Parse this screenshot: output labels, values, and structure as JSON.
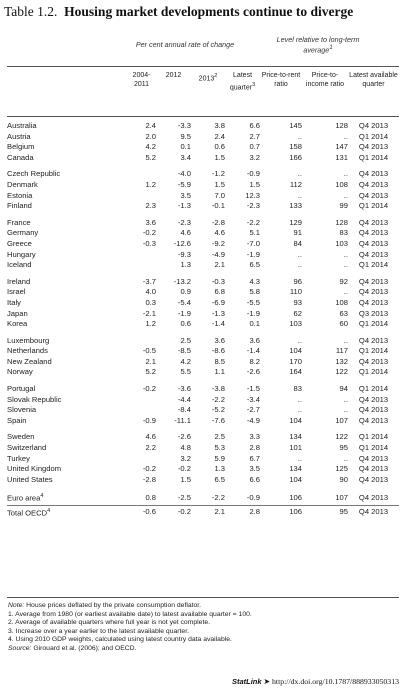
{
  "title": {
    "prefix": "Table 1.2.",
    "text": "Housing market developments continue to diverge"
  },
  "headers": {
    "group1": "Per cent annual rate of change",
    "group2": "Level relative to long-term average",
    "group2_sup": "1",
    "columns": [
      {
        "text": "2004-2011",
        "sup": ""
      },
      {
        "text": "2012",
        "sup": ""
      },
      {
        "text": "2013",
        "sup": "2"
      },
      {
        "text": "Latest quarter",
        "sup": "3"
      },
      {
        "text": "Price-to-rent ratio",
        "sup": ""
      },
      {
        "text": "Price-to-income ratio",
        "sup": ""
      },
      {
        "text": "Latest available quarter",
        "sup": ""
      }
    ]
  },
  "rows": [
    {
      "country": "Australia",
      "v": [
        "2.4",
        "-3.3",
        "3.8",
        "6.6",
        "145",
        "128",
        "Q4 2013"
      ]
    },
    {
      "country": "Austria",
      "v": [
        "2.0",
        "9.5",
        "2.4",
        "2.7",
        "..",
        "..",
        "Q1 2014"
      ]
    },
    {
      "country": "Belgium",
      "v": [
        "4.2",
        "0.1",
        "0.6",
        "0.7",
        "158",
        "147",
        "Q4 2013"
      ]
    },
    {
      "country": "Canada",
      "v": [
        "5.2",
        "3.4",
        "1.5",
        "3.2",
        "166",
        "131",
        "Q1 2014"
      ]
    },
    {
      "country": "Czech Republic",
      "v": [
        "",
        "-4.0",
        "-1.2",
        "-0.9",
        "..",
        "..",
        "Q4 2013"
      ]
    },
    {
      "country": "Denmark",
      "v": [
        "1.2",
        "-5.9",
        "1.5",
        "1.5",
        "112",
        "108",
        "Q4 2013"
      ]
    },
    {
      "country": "Estonia",
      "v": [
        "",
        "3.5",
        "7.0",
        "12.3",
        "..",
        "..",
        "Q4 2013"
      ]
    },
    {
      "country": "Finland",
      "v": [
        "2.3",
        "-1.3",
        "-0.1",
        "-2.3",
        "133",
        "99",
        "Q1 2014"
      ]
    },
    {
      "country": "France",
      "v": [
        "3.6",
        "-2.3",
        "-2.8",
        "-2.2",
        "129",
        "128",
        "Q4 2013"
      ]
    },
    {
      "country": "Germany",
      "v": [
        "-0.2",
        "4.6",
        "4.6",
        "5.1",
        "91",
        "83",
        "Q4 2013"
      ]
    },
    {
      "country": "Greece",
      "v": [
        "-0.3",
        "-12.6",
        "-9.2",
        "-7.0",
        "84",
        "103",
        "Q4 2013"
      ]
    },
    {
      "country": "Hungary",
      "v": [
        "",
        "-9.3",
        "-4.9",
        "-1.9",
        "..",
        "..",
        "Q4 2013"
      ]
    },
    {
      "country": "Iceland",
      "v": [
        "",
        "1.3",
        "2.1",
        "6.5",
        "..",
        "..",
        "Q1 2014"
      ]
    },
    {
      "country": "Ireland",
      "v": [
        "-3.7",
        "-13.2",
        "-0.3",
        "4.3",
        "96",
        "92",
        "Q4 2013"
      ]
    },
    {
      "country": "Israel",
      "v": [
        "4.0",
        "0.9",
        "6.8",
        "5.8",
        "110",
        "..",
        "Q4 2013"
      ]
    },
    {
      "country": "Italy",
      "v": [
        "0.3",
        "-5.4",
        "-6.9",
        "-5.5",
        "93",
        "108",
        "Q4 2013"
      ]
    },
    {
      "country": "Japan",
      "v": [
        "-2.1",
        "-1.9",
        "-1.3",
        "-1.9",
        "62",
        "63",
        "Q3 2013"
      ]
    },
    {
      "country": "Korea",
      "v": [
        "1.2",
        "0.6",
        "-1.4",
        "0.1",
        "103",
        "60",
        "Q1 2014"
      ]
    },
    {
      "country": "Luxembourg",
      "v": [
        "",
        "2.5",
        "3.6",
        "3.6",
        "..",
        "..",
        "Q4 2013"
      ]
    },
    {
      "country": "Netherlands",
      "v": [
        "-0.5",
        "-8.5",
        "-8.6",
        "-1.4",
        "104",
        "117",
        "Q1 2014"
      ]
    },
    {
      "country": "New Zealand",
      "v": [
        "2.1",
        "4.2",
        "8.5",
        "8.2",
        "170",
        "132",
        "Q4 2013"
      ]
    },
    {
      "country": "Norway",
      "v": [
        "5.2",
        "5.5",
        "1.1",
        "-2.6",
        "164",
        "122",
        "Q1 2014"
      ]
    },
    {
      "country": "Portugal",
      "v": [
        "-0.2",
        "-3.6",
        "-3.8",
        "-1.5",
        "83",
        "94",
        "Q1 2014"
      ]
    },
    {
      "country": "Slovak Republic",
      "v": [
        "",
        "-4.4",
        "-2.2",
        "-3.4",
        "..",
        "..",
        "Q4 2013"
      ]
    },
    {
      "country": "Slovenia",
      "v": [
        "",
        "-8.4",
        "-5.2",
        "-2.7",
        "..",
        "..",
        "Q4 2013"
      ]
    },
    {
      "country": "Spain",
      "v": [
        "-0.9",
        "-11.1",
        "-7.6",
        "-4.9",
        "104",
        "107",
        "Q4 2013"
      ]
    },
    {
      "country": "Sweden",
      "v": [
        "4.6",
        "-2.6",
        "2.5",
        "3.3",
        "134",
        "122",
        "Q1 2014"
      ]
    },
    {
      "country": "Switzerland",
      "v": [
        "2.2",
        "4.8",
        "5.3",
        "2.8",
        "101",
        "95",
        "Q1 2014"
      ]
    },
    {
      "country": "Turkey",
      "v": [
        "",
        "3.2",
        "5.9",
        "6.7",
        "..",
        "..",
        "Q4 2013"
      ]
    },
    {
      "country": "United Kingdom",
      "v": [
        "-0.2",
        "-0.2",
        "1.3",
        "3.5",
        "134",
        "125",
        "Q4 2013"
      ]
    },
    {
      "country": "United States",
      "v": [
        "-2.8",
        "1.5",
        "6.5",
        "6.6",
        "104",
        "90",
        "Q4 2013"
      ]
    },
    {
      "country": "Euro area",
      "sup": "4",
      "v": [
        "0.8",
        "-2.5",
        "-2.2",
        "-0.9",
        "106",
        "107",
        "Q4 2013"
      ]
    },
    {
      "country": "Total OECD",
      "sup": "4",
      "v": [
        "-0.6",
        "-0.2",
        "2.1",
        "2.8",
        "106",
        "95",
        "Q4 2013"
      ]
    }
  ],
  "notes": {
    "note_label": "Note:",
    "note_text": "House prices deflated by the private consumption deflator.",
    "items": [
      "1.  Average from 1980 (or earliest available date) to latest available quarter = 100.",
      "2.  Average of available quarters where full year is not yet complete.",
      "3.  Increase over a year earlier to the latest available quarter.",
      "4.  Using 2010 GDP weights, calculated using latest country data available."
    ],
    "source_label": "Source:",
    "source_text": "Girouard et al. (2006); and OECD."
  },
  "statlink": {
    "label": "StatLink",
    "arrow": "➤",
    "url": "http://dx.doi.org/10.1787/888933050313"
  }
}
